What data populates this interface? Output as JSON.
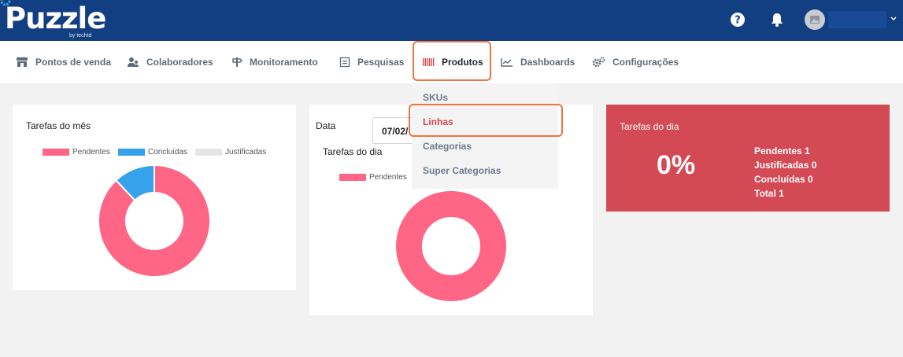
{
  "brand": {
    "name": "Puzzle",
    "tagline": "by techtd"
  },
  "header": {
    "help_icon": "question-circle-icon",
    "notification_icon": "bell-icon",
    "avatar_icon": "image-placeholder-icon"
  },
  "nav": {
    "items": [
      {
        "label": "Pontos de venda",
        "icon": "store-icon"
      },
      {
        "label": "Colaboradores",
        "icon": "users-icon"
      },
      {
        "label": "Monitoramento",
        "icon": "signpost-icon"
      },
      {
        "label": "Pesquisas",
        "icon": "form-icon"
      },
      {
        "label": "Produtos",
        "icon": "barcode-icon"
      },
      {
        "label": "Dashboards",
        "icon": "line-chart-icon"
      },
      {
        "label": "Configurações",
        "icon": "cogs-icon"
      }
    ],
    "active": "Produtos"
  },
  "dropdown": {
    "items": [
      "SKUs",
      "Linhas",
      "Categorias",
      "Super Categorias"
    ],
    "active": "Linhas"
  },
  "cards": {
    "month": {
      "title": "Tarefas do mês"
    },
    "day": {
      "date_label": "Data",
      "date_value": "07/02/",
      "title": "Tarefas do dia"
    },
    "summary": {
      "title": "Tarefas do dia",
      "percent": "0%",
      "stats": [
        "Pendentes 1",
        "Justificadas 0",
        "Concluídas 0",
        "Total 1"
      ]
    }
  },
  "colors": {
    "header": "#123f82",
    "pending": "#ff6584",
    "done": "#36a2eb",
    "justified": "#e4e5e7",
    "summary_bg": "#d34a54",
    "highlight": "#f0743e",
    "active_link": "#d9444d"
  },
  "chart_data": [
    {
      "type": "pie",
      "title": "Tarefas do mês",
      "legend": "top",
      "categories": [
        "Pendentes",
        "Concluídas",
        "Justificadas"
      ],
      "values": [
        88,
        12,
        0
      ],
      "colors": [
        "#ff6584",
        "#36a2eb",
        "#e4e5e7"
      ]
    },
    {
      "type": "pie",
      "title": "Tarefas do dia",
      "legend": "top",
      "categories": [
        "Pendentes"
      ],
      "values": [
        100
      ],
      "colors": [
        "#ff6584"
      ]
    }
  ]
}
